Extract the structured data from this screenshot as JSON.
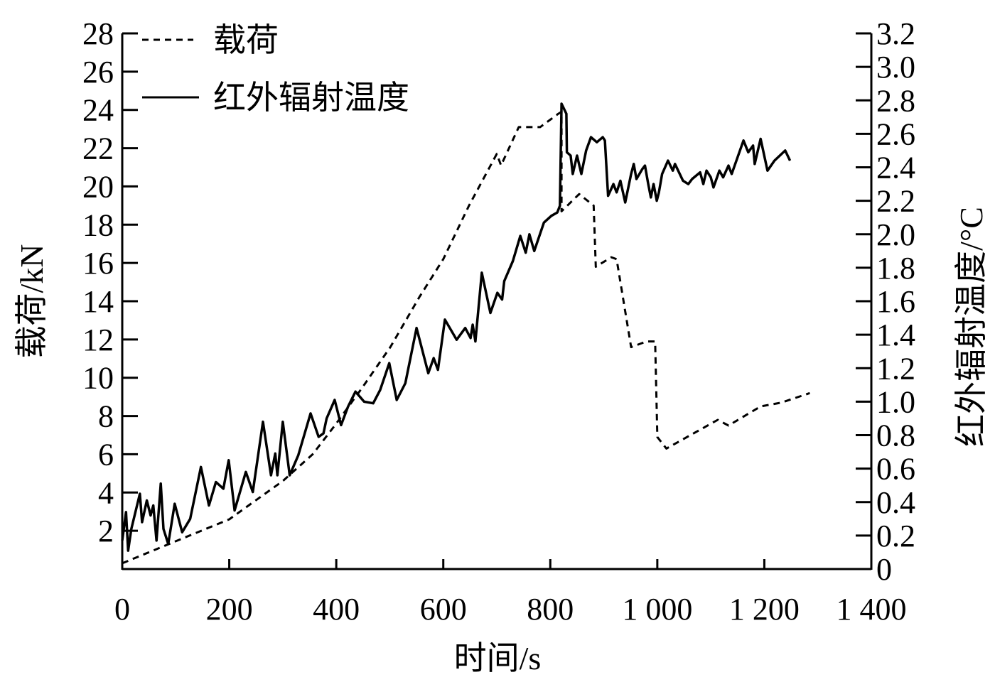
{
  "chart_data": {
    "type": "line",
    "title": "",
    "xlabel": "时间/s",
    "ylabel": "载荷/kN",
    "ylabel_right": "红外辐射温度/°C",
    "xlim": [
      0,
      1400
    ],
    "ylim": [
      0,
      28
    ],
    "ylim_right": [
      0,
      3.2
    ],
    "x_ticks": [
      "0",
      "200",
      "400",
      "600",
      "800",
      "1 000",
      "1 200",
      "1 400"
    ],
    "x_tick_values": [
      0,
      200,
      400,
      600,
      800,
      1000,
      1200,
      1400
    ],
    "y_ticks": [
      "2",
      "4",
      "6",
      "8",
      "10",
      "12",
      "14",
      "16",
      "18",
      "20",
      "22",
      "24",
      "26",
      "28"
    ],
    "y_tick_values": [
      2,
      4,
      6,
      8,
      10,
      12,
      14,
      16,
      18,
      20,
      22,
      24,
      26,
      28
    ],
    "y_right_ticks": [
      "0",
      "0.2",
      "0.4",
      "0.6",
      "0.8",
      "1.0",
      "1.2",
      "1.4",
      "1.6",
      "1.8",
      "2.0",
      "2.2",
      "2.4",
      "2.6",
      "2.8",
      "3.0",
      "3.2"
    ],
    "y_right_tick_values": [
      0,
      0.2,
      0.4,
      0.6,
      0.8,
      1.0,
      1.2,
      1.4,
      1.6,
      1.8,
      2.0,
      2.2,
      2.4,
      2.6,
      2.8,
      3.0,
      3.2
    ],
    "grid": false,
    "legend_position": "top-left",
    "series": [
      {
        "name": "载荷",
        "axis": "left",
        "style": "dashed",
        "points": [
          [
            0,
            0.3
          ],
          [
            104,
            1.5
          ],
          [
            200,
            2.6
          ],
          [
            300,
            4.6
          ],
          [
            356,
            6.0
          ],
          [
            400,
            7.6
          ],
          [
            449,
            9.5
          ],
          [
            501,
            11.6
          ],
          [
            555,
            14.2
          ],
          [
            600,
            16.2
          ],
          [
            648,
            19.0
          ],
          [
            700,
            21.7
          ],
          [
            708,
            21.1
          ],
          [
            741,
            23.1
          ],
          [
            781,
            23.1
          ],
          [
            815,
            23.8
          ],
          [
            821,
            23.9
          ],
          [
            821,
            18.7
          ],
          [
            854,
            19.6
          ],
          [
            881,
            19.0
          ],
          [
            885,
            15.8
          ],
          [
            914,
            16.3
          ],
          [
            924,
            16.2
          ],
          [
            951,
            11.6
          ],
          [
            980,
            11.9
          ],
          [
            996,
            11.9
          ],
          [
            1000,
            6.9
          ],
          [
            1017,
            6.3
          ],
          [
            1113,
            7.8
          ],
          [
            1133,
            7.5
          ],
          [
            1193,
            8.5
          ],
          [
            1232,
            8.7
          ],
          [
            1285,
            9.2
          ]
        ]
      },
      {
        "name": "红外辐射温度",
        "axis": "right",
        "style": "solid",
        "points": [
          [
            0,
            0.17
          ],
          [
            7,
            0.34
          ],
          [
            11,
            0.11
          ],
          [
            17,
            0.24
          ],
          [
            33,
            0.45
          ],
          [
            37,
            0.28
          ],
          [
            46,
            0.41
          ],
          [
            53,
            0.32
          ],
          [
            58,
            0.38
          ],
          [
            64,
            0.17
          ],
          [
            72,
            0.51
          ],
          [
            77,
            0.24
          ],
          [
            86,
            0.15
          ],
          [
            98,
            0.39
          ],
          [
            112,
            0.22
          ],
          [
            127,
            0.3
          ],
          [
            147,
            0.61
          ],
          [
            162,
            0.38
          ],
          [
            175,
            0.52
          ],
          [
            189,
            0.48
          ],
          [
            199,
            0.65
          ],
          [
            210,
            0.35
          ],
          [
            231,
            0.58
          ],
          [
            244,
            0.46
          ],
          [
            263,
            0.88
          ],
          [
            278,
            0.56
          ],
          [
            286,
            0.69
          ],
          [
            290,
            0.56
          ],
          [
            300,
            0.88
          ],
          [
            313,
            0.56
          ],
          [
            329,
            0.68
          ],
          [
            352,
            0.93
          ],
          [
            367,
            0.79
          ],
          [
            376,
            0.81
          ],
          [
            382,
            0.9
          ],
          [
            397,
            1.01
          ],
          [
            409,
            0.86
          ],
          [
            422,
            0.97
          ],
          [
            436,
            1.06
          ],
          [
            452,
            1.0
          ],
          [
            469,
            0.99
          ],
          [
            482,
            1.07
          ],
          [
            499,
            1.23
          ],
          [
            513,
            1.01
          ],
          [
            529,
            1.11
          ],
          [
            550,
            1.44
          ],
          [
            572,
            1.17
          ],
          [
            582,
            1.26
          ],
          [
            590,
            1.19
          ],
          [
            603,
            1.49
          ],
          [
            625,
            1.37
          ],
          [
            641,
            1.44
          ],
          [
            651,
            1.38
          ],
          [
            655,
            1.46
          ],
          [
            660,
            1.36
          ],
          [
            672,
            1.77
          ],
          [
            688,
            1.53
          ],
          [
            701,
            1.65
          ],
          [
            710,
            1.61
          ],
          [
            714,
            1.72
          ],
          [
            730,
            1.84
          ],
          [
            744,
            1.99
          ],
          [
            754,
            1.89
          ],
          [
            761,
            2.0
          ],
          [
            770,
            1.9
          ],
          [
            788,
            2.07
          ],
          [
            802,
            2.11
          ],
          [
            813,
            2.13
          ],
          [
            818,
            2.17
          ],
          [
            821,
            2.78
          ],
          [
            830,
            2.72
          ],
          [
            831,
            2.49
          ],
          [
            838,
            2.47
          ],
          [
            842,
            2.36
          ],
          [
            850,
            2.47
          ],
          [
            858,
            2.36
          ],
          [
            867,
            2.5
          ],
          [
            876,
            2.58
          ],
          [
            887,
            2.55
          ],
          [
            898,
            2.58
          ],
          [
            902,
            2.56
          ],
          [
            908,
            2.23
          ],
          [
            918,
            2.3
          ],
          [
            924,
            2.25
          ],
          [
            931,
            2.32
          ],
          [
            940,
            2.19
          ],
          [
            951,
            2.36
          ],
          [
            956,
            2.42
          ],
          [
            961,
            2.33
          ],
          [
            972,
            2.39
          ],
          [
            977,
            2.41
          ],
          [
            983,
            2.3
          ],
          [
            988,
            2.22
          ],
          [
            993,
            2.3
          ],
          [
            999,
            2.2
          ],
          [
            1003,
            2.25
          ],
          [
            1009,
            2.36
          ],
          [
            1020,
            2.44
          ],
          [
            1029,
            2.38
          ],
          [
            1033,
            2.42
          ],
          [
            1048,
            2.32
          ],
          [
            1058,
            2.3
          ],
          [
            1065,
            2.33
          ],
          [
            1080,
            2.37
          ],
          [
            1086,
            2.3
          ],
          [
            1092,
            2.38
          ],
          [
            1100,
            2.34
          ],
          [
            1105,
            2.28
          ],
          [
            1116,
            2.38
          ],
          [
            1123,
            2.34
          ],
          [
            1133,
            2.41
          ],
          [
            1139,
            2.36
          ],
          [
            1161,
            2.56
          ],
          [
            1170,
            2.49
          ],
          [
            1179,
            2.53
          ],
          [
            1182,
            2.42
          ],
          [
            1193,
            2.57
          ],
          [
            1206,
            2.38
          ],
          [
            1219,
            2.44
          ],
          [
            1239,
            2.5
          ],
          [
            1248,
            2.44
          ]
        ]
      }
    ]
  }
}
